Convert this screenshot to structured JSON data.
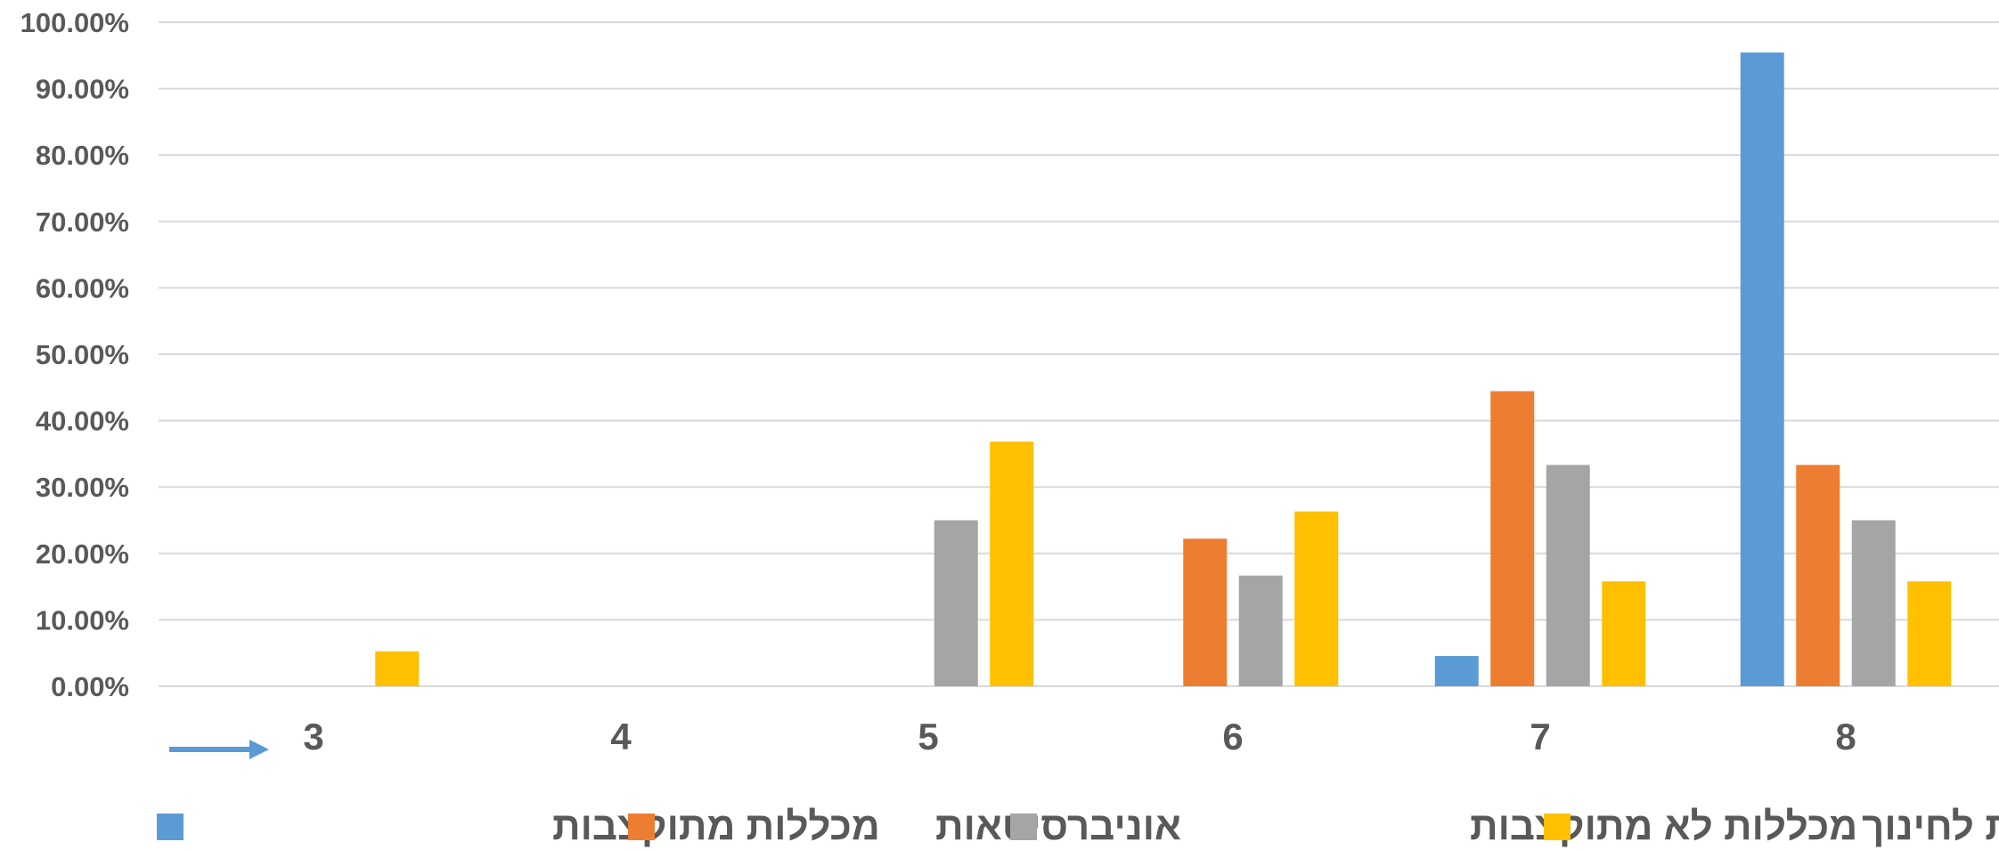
{
  "chart_data": {
    "type": "bar",
    "categories": [
      "3",
      "4",
      "5",
      "6",
      "7",
      "8"
    ],
    "series": [
      {
        "name": "מכללות מתוקצבות",
        "color": "#5B9BD5",
        "values": [
          0,
          0,
          0,
          0,
          4.55,
          95.45
        ]
      },
      {
        "name": "אוניברסיטאות",
        "color": "#ED7D31",
        "values": [
          0,
          0,
          0,
          22.22,
          44.44,
          33.33
        ]
      },
      {
        "name": "מכללות לא מתוקצבות",
        "color": "#A5A5A5",
        "values": [
          0,
          0,
          25.0,
          16.67,
          33.33,
          25.0
        ]
      },
      {
        "name": "מכללות לחינוך",
        "color": "#FFC000",
        "values": [
          5.26,
          0,
          36.84,
          26.32,
          15.79,
          15.79
        ]
      }
    ],
    "yticks": [
      "0.00%",
      "10.00%",
      "20.00%",
      "30.00%",
      "40.00%",
      "50.00%",
      "60.00%",
      "70.00%",
      "80.00%",
      "90.00%",
      "100.00%"
    ],
    "ylim": [
      0,
      100
    ],
    "title": "",
    "xlabel": "",
    "ylabel": "",
    "grid": true,
    "legend_position": "bottom",
    "arrow_icon": "arrow-right-icon",
    "colors": {
      "grid": "#D9D9D9",
      "text": "#595959",
      "arrow": "#5B9BD5"
    }
  }
}
